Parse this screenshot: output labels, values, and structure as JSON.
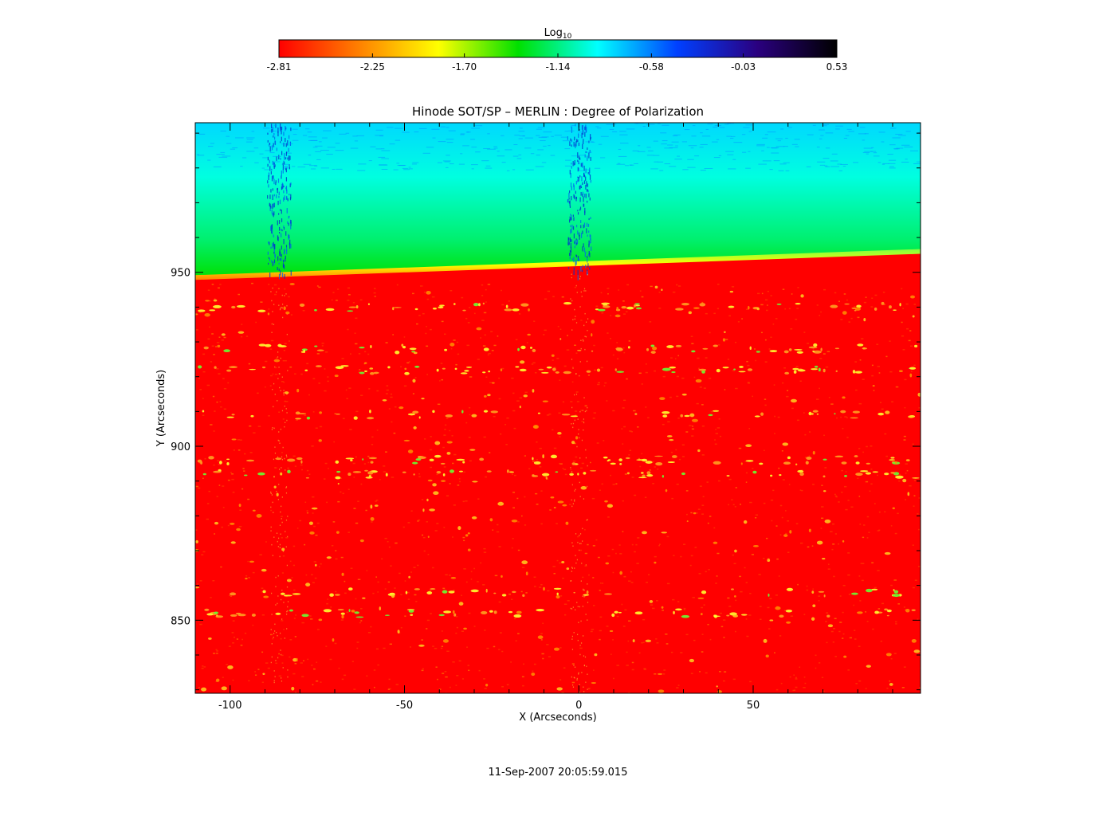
{
  "chart_data": {
    "type": "heatmap",
    "title": "Hinode SOT/SP – MERLIN : Degree of Polarization",
    "xlabel": "X (Arcseconds)",
    "ylabel": "Y (Arcseconds)",
    "xlim": [
      -110,
      98
    ],
    "ylim": [
      829,
      993
    ],
    "x_ticks": [
      -100,
      -50,
      0,
      50
    ],
    "y_ticks": [
      850,
      900,
      950
    ],
    "colorbar": {
      "label_base": "Log",
      "label_sub": "10",
      "ticks": [
        "-2.81",
        "-2.25",
        "-1.70",
        "-1.14",
        "-0.58",
        "-0.03",
        "0.53"
      ],
      "range": [
        -2.81,
        0.53
      ],
      "colors": [
        "#ff0000",
        "#ff8000",
        "#ffff00",
        "#00e000",
        "#00ffff",
        "#0040ff",
        "#2a0080",
        "#000000"
      ]
    },
    "limb": {
      "x": [
        -110,
        98
      ],
      "y": [
        948.5,
        956
      ]
    },
    "regions": {
      "disk_color": "#ff0000",
      "offlimb_top_color": "#00e5e5",
      "offlimb_bottom_color": "#00e600",
      "bright_color": "#ffff30"
    },
    "bright_rows_y": [
      940,
      928,
      922,
      909,
      896,
      892,
      858,
      852
    ],
    "grid": false
  },
  "footer": {
    "timestamp": "11-Sep-2007 20:05:59.015"
  }
}
